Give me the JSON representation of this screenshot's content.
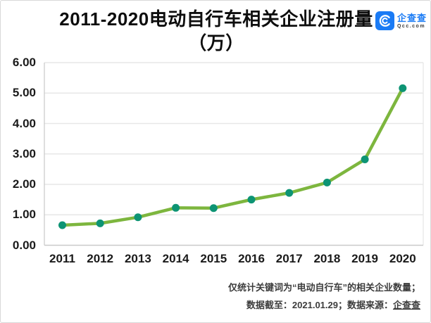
{
  "page": {
    "background": "#ffffff",
    "border_color": "#d8d8d8"
  },
  "header": {
    "title_line1": "2011-2020电动自行车相关企业注册量",
    "title_line2": "（万）",
    "logo": {
      "icon": "qcc-swirl-icon",
      "brand": "企查查",
      "domain": "Qcc.com",
      "icon_bg": "#1a7bf5",
      "brand_color": "#1a7bf5"
    }
  },
  "chart_data": {
    "type": "line",
    "title": "2011-2020电动自行车相关企业注册量（万）",
    "categories": [
      "2011",
      "2012",
      "2013",
      "2014",
      "2015",
      "2016",
      "2017",
      "2018",
      "2019",
      "2020"
    ],
    "values": [
      0.66,
      0.72,
      0.92,
      1.23,
      1.22,
      1.5,
      1.72,
      2.06,
      2.82,
      5.16
    ],
    "xlabel": "",
    "ylabel": "",
    "ylim": [
      0,
      6
    ],
    "ytick_step": 1,
    "ytick_decimals": 2,
    "grid": "horizontal",
    "legend": "none",
    "line_color": "#7db63e",
    "marker_color": "#0d9474",
    "grid_color": "#e7e7e7",
    "axis_color": "#c9c9c9"
  },
  "footer": {
    "line1": "仅统计关键词为“电动自行车”的相关企业数量；",
    "line2_prefix": "数据截至：2021.01.29；数据来源：",
    "line2_source": "企查查"
  }
}
